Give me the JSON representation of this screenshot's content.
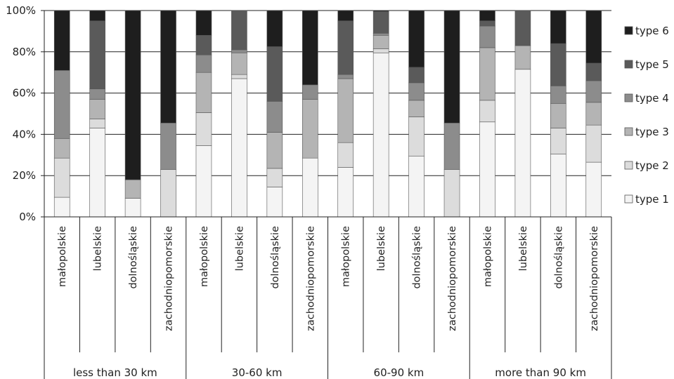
{
  "chart_data": {
    "type": "bar",
    "stacked": true,
    "normalized": true,
    "ylim": [
      0,
      100
    ],
    "y_ticks": [
      "0%",
      "20%",
      "40%",
      "60%",
      "80%",
      "100%"
    ],
    "grid": true,
    "legend_position": "right",
    "groups": [
      {
        "label": "less than 30 km",
        "categories": [
          "małopolskie",
          "lubelskie",
          "dolnośląskie",
          "zachodniopomorskie"
        ]
      },
      {
        "label": "30-60 km",
        "categories": [
          "małopolskie",
          "lubelskie",
          "dolnośląskie",
          "zachodniopomorskie"
        ]
      },
      {
        "label": "60-90 km",
        "categories": [
          "małopolskie",
          "lubelskie",
          "dolnośląskie",
          "zachodniopomorskie"
        ]
      },
      {
        "label": "more than 90 km",
        "categories": [
          "małopolskie",
          "lubelskie",
          "dolnośląskie",
          "zachodniopomorskie"
        ]
      }
    ],
    "series": [
      {
        "name": "type 1",
        "color": "#f4f4f4",
        "values": [
          9.5,
          43,
          9,
          0,
          34.5,
          67,
          14.5,
          28.5,
          24,
          79.5,
          29.5,
          0,
          46,
          71.5,
          30.5,
          26.5
        ]
      },
      {
        "name": "type 2",
        "color": "#dcdcdc",
        "values": [
          19,
          4.5,
          0,
          23,
          16,
          2,
          9,
          0,
          12,
          2,
          19,
          23,
          10.5,
          0,
          12.5,
          18
        ]
      },
      {
        "name": "type 3",
        "color": "#b4b4b4",
        "values": [
          9.5,
          9.5,
          9,
          0,
          19.5,
          10.5,
          17.5,
          28.5,
          31,
          6.5,
          8,
          0,
          25.5,
          11.5,
          12,
          11
        ]
      },
      {
        "name": "type 4",
        "color": "#8c8c8c",
        "values": [
          33,
          5,
          0,
          22.5,
          8.5,
          1.5,
          15,
          7,
          2,
          1,
          8.5,
          22.5,
          10.5,
          0,
          8.5,
          10.5
        ]
      },
      {
        "name": "type 5",
        "color": "#5a5a5a",
        "values": [
          0,
          33,
          0,
          0,
          9.5,
          19,
          26.5,
          0,
          26,
          10.5,
          7.5,
          0,
          2.5,
          17,
          20.5,
          8.5
        ]
      },
      {
        "name": "type 6",
        "color": "#1e1e1e",
        "values": [
          29,
          5,
          82,
          54.5,
          12,
          0,
          17.5,
          36,
          5,
          0.5,
          27.5,
          54.5,
          5,
          0,
          16,
          25.5
        ]
      }
    ]
  }
}
